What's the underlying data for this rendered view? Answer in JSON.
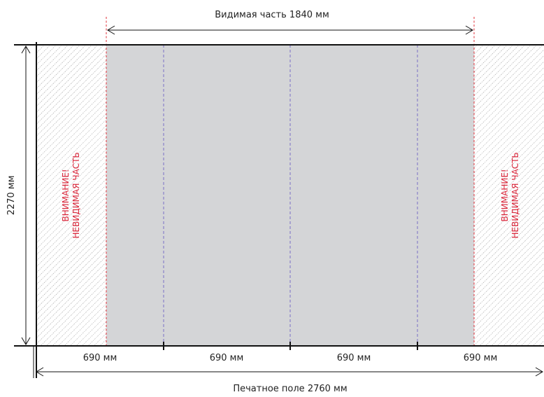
{
  "visible_label": "Видимая часть 1840 мм",
  "height_label": "2270 мм",
  "print_field_label": "Печатное поле 2760 мм",
  "segment_labels": [
    "690 мм",
    "690 мм",
    "690 мм",
    "690 мм"
  ],
  "warning": {
    "line1": "ВНИМАНИЕ!",
    "line2": "НЕВИДИМАЯ ЧАСТЬ"
  },
  "colors": {
    "visible_fill": "#d4d5d7",
    "boundary_line": "#e0303a",
    "fold_line": "#7a6fc4",
    "warning_text": "#d9263a",
    "hatch": "#8a8a8a",
    "frame": "#111111"
  }
}
